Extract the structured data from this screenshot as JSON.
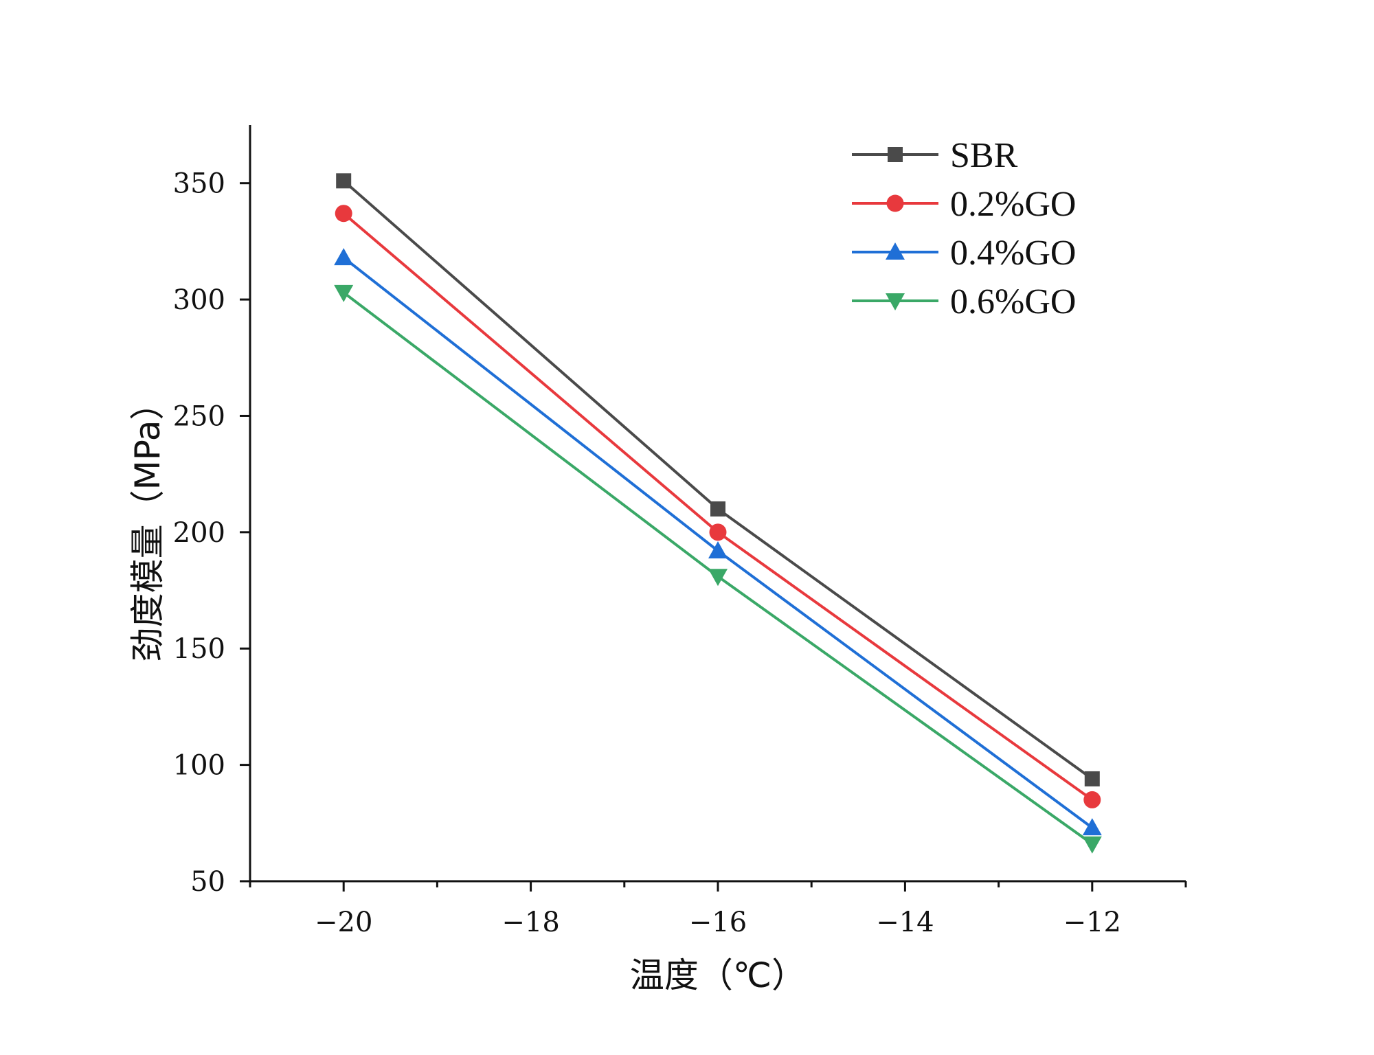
{
  "chart_data": {
    "type": "line",
    "title": "",
    "xlabel": "温度（℃）",
    "ylabel": "劲度模量（MPa）",
    "xlim": [
      -21,
      -11
    ],
    "ylim": [
      50,
      375
    ],
    "x_ticks": [
      -20,
      -18,
      -16,
      -14,
      -12
    ],
    "x_tick_labels": [
      "−20",
      "−18",
      "−16",
      "−14",
      "−12"
    ],
    "x_minor_ticks": [
      -21,
      -19,
      -17,
      -15,
      -13,
      -11
    ],
    "y_ticks": [
      50,
      100,
      150,
      200,
      250,
      300,
      350
    ],
    "y_tick_labels": [
      "50",
      "100",
      "150",
      "200",
      "250",
      "300",
      "350"
    ],
    "legend_position": "top-right",
    "grid": false,
    "x": [
      -20,
      -16,
      -12
    ],
    "series": [
      {
        "name": "SBR",
        "values": [
          351,
          210,
          94
        ],
        "color": "#4a4a4a",
        "marker": "square"
      },
      {
        "name": "0.2%GO",
        "values": [
          337,
          200,
          85
        ],
        "color": "#e8393d",
        "marker": "circle"
      },
      {
        "name": "0.4%GO",
        "values": [
          318,
          192,
          73
        ],
        "color": "#1f6fd6",
        "marker": "triangle-up"
      },
      {
        "name": "0.6%GO",
        "values": [
          303,
          181,
          66
        ],
        "color": "#3aa867",
        "marker": "triangle-down"
      }
    ]
  }
}
